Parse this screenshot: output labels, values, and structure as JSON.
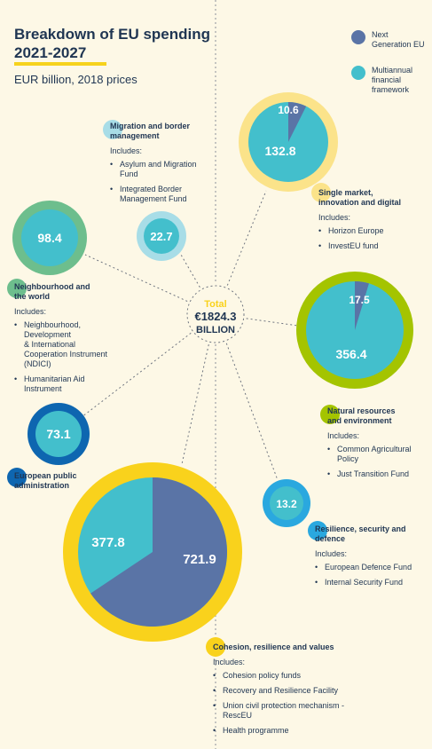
{
  "title_lines": [
    "Breakdown of EU spending",
    "2021-2027"
  ],
  "subtitle": "EUR billion, 2018 prices",
  "legend": [
    {
      "lines": [
        "Next",
        "Generation EU"
      ],
      "color": "#5a74a6"
    },
    {
      "lines": [
        "Multiannual",
        "financial",
        "framework"
      ],
      "color": "#43bfcc"
    }
  ],
  "center": {
    "total_label": "Total",
    "value": "€1824.3",
    "unit": "BILLION"
  },
  "colors": {
    "ngeu": "#5a74a6",
    "mff": "#43bfcc",
    "single_market_ring": "#fbe38a",
    "natural_ring": "#a4c400",
    "cohesion_ring": "#f9d21c",
    "neighbourhood_ring": "#6dbe8d",
    "migration_ring": "#a8dde7",
    "admin_ring": "#0e66b0",
    "resilience_ring": "#2aa8df",
    "text": "#1f3552",
    "background": "#fdf8e6",
    "total_label": "#f9d21c"
  },
  "chart_data": {
    "type": "pie",
    "title": "Breakdown of EU spending 2021-2027",
    "subtitle": "EUR billion, 2018 prices",
    "total": 1824.3,
    "series_names": [
      "Next Generation EU",
      "Multiannual financial framework"
    ],
    "categories": [
      {
        "name": "Single market, innovation and digital",
        "ngeu": 10.6,
        "mff": 132.8
      },
      {
        "name": "Natural resources and environment",
        "ngeu": 17.5,
        "mff": 356.4
      },
      {
        "name": "Cohesion, resilience and values",
        "ngeu": 721.9,
        "mff": 377.8
      },
      {
        "name": "Neighbourhood and the world",
        "mff": 98.4
      },
      {
        "name": "Migration and border management",
        "mff": 22.7
      },
      {
        "name": "European public administration",
        "mff": 73.1
      },
      {
        "name": "Resilience, security and defence",
        "mff": 13.2
      }
    ]
  },
  "bubbles": [
    {
      "key": "single_market",
      "ring": "single_market_ring",
      "ngeu": 10.6,
      "mff": 132.8,
      "ngeu_label": "10.6",
      "mff_label": "132.8"
    },
    {
      "key": "natural",
      "ring": "natural_ring",
      "ngeu": 17.5,
      "mff": 356.4,
      "ngeu_label": "17.5",
      "mff_label": "356.4"
    },
    {
      "key": "cohesion",
      "ring": "cohesion_ring",
      "ngeu": 721.9,
      "mff": 377.8,
      "ngeu_label": "721.9",
      "mff_label": "377.8"
    },
    {
      "key": "neighbourhood",
      "ring": "neighbourhood_ring",
      "mff": 98.4,
      "mff_label": "98.4"
    },
    {
      "key": "migration",
      "ring": "migration_ring",
      "mff": 22.7,
      "mff_label": "22.7"
    },
    {
      "key": "admin",
      "ring": "admin_ring",
      "mff": 73.1,
      "mff_label": "73.1"
    },
    {
      "key": "resilience",
      "ring": "resilience_ring",
      "mff": 13.2,
      "mff_label": "13.2"
    }
  ],
  "blocks": {
    "migration": {
      "title_lines": [
        "Migration and border",
        "management"
      ],
      "includes": "Includes:",
      "items": [
        [
          "Asylum and Migration",
          "Fund"
        ],
        [
          "Integrated Border",
          "Management Fund"
        ]
      ],
      "badge": "migration_ring"
    },
    "single_market": {
      "title_lines": [
        "Single market,",
        "innovation and digital"
      ],
      "includes": "Includes:",
      "items": [
        [
          "Horizon Europe"
        ],
        [
          "InvestEU fund"
        ]
      ],
      "badge": "single_market_ring"
    },
    "neighbourhood": {
      "title_lines": [
        "Neighbourhood and",
        "the world"
      ],
      "includes": "Includes:",
      "items": [
        [
          "Neighbourhood,",
          "Development",
          "& International",
          "Cooperation Instrument",
          "(NDICI)"
        ],
        [
          "Humanitarian Aid",
          "Instrument"
        ]
      ],
      "badge": "neighbourhood_ring"
    },
    "natural": {
      "title_lines": [
        "Natural resources",
        "and environment"
      ],
      "includes": "Includes:",
      "items": [
        [
          "Common Agricultural",
          "Policy"
        ],
        [
          "Just Transition Fund"
        ]
      ],
      "badge": "natural_ring"
    },
    "admin": {
      "title_lines": [
        "European public",
        "administration"
      ],
      "badge": "admin_ring"
    },
    "resilience": {
      "title_lines": [
        "Resilience, security and",
        "defence"
      ],
      "includes": "Includes:",
      "items": [
        [
          "European Defence Fund"
        ],
        [
          "Internal Security Fund"
        ]
      ],
      "badge": "resilience_ring"
    },
    "cohesion": {
      "title_lines": [
        "Cohesion, resilience and values"
      ],
      "includes": "Includes:",
      "items": [
        [
          "Cohesion policy funds"
        ],
        [
          "Recovery and Resilience Facility"
        ],
        [
          "Union civil protection mechanism -",
          "RescEU"
        ],
        [
          "Health programme"
        ]
      ],
      "badge": "cohesion_ring"
    }
  }
}
